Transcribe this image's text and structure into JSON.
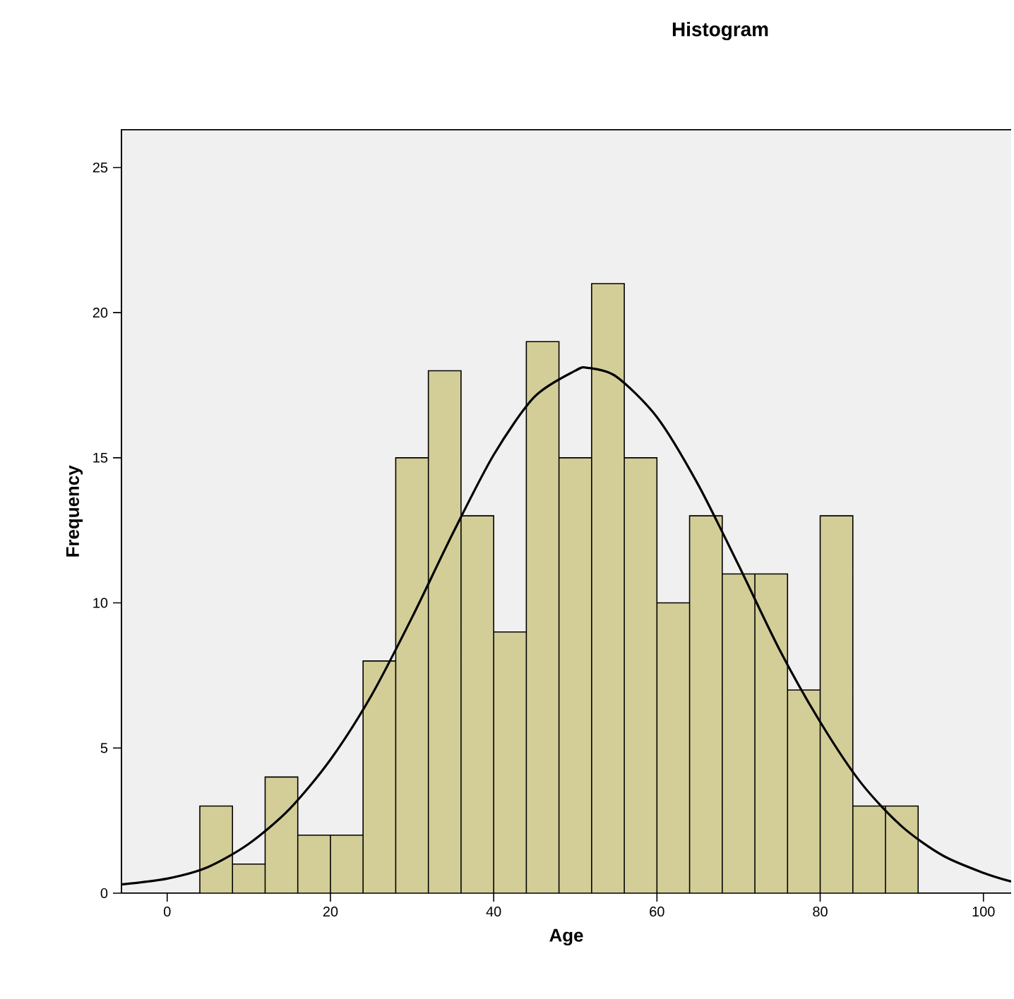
{
  "chart_data": {
    "type": "histogram",
    "title": "Histogram",
    "xlabel": "Age",
    "ylabel": "Frequency",
    "bins": [
      4,
      8,
      12,
      16,
      20,
      24,
      28,
      32,
      36,
      40,
      44,
      48,
      52,
      56,
      60,
      64,
      68,
      72,
      76,
      80,
      84,
      88,
      92
    ],
    "values": [
      3,
      1,
      4,
      2,
      2,
      8,
      15,
      18,
      13,
      9,
      19,
      15,
      21,
      15,
      10,
      13,
      11,
      11,
      7,
      13,
      3,
      3
    ],
    "color": "#d3ce98",
    "series": [
      {
        "type": "line",
        "color": "#000000",
        "x": [
          -5.6,
          0,
          5,
          10,
          15,
          20,
          25,
          30,
          35,
          40,
          45,
          50,
          51.5,
          55,
          60,
          65,
          70,
          75,
          80,
          85,
          90,
          95,
          100,
          103.4
        ],
        "values": [
          0.3,
          0.5,
          0.9,
          1.7,
          2.9,
          4.6,
          6.8,
          9.5,
          12.4,
          15.1,
          17.1,
          18.0,
          18.1,
          17.8,
          16.4,
          14.1,
          11.3,
          8.4,
          5.9,
          3.8,
          2.3,
          1.3,
          0.7,
          0.4
        ]
      }
    ],
    "xlim": [
      -5.6,
      103.4
    ],
    "ylim": [
      0,
      26.3
    ],
    "xticks": [
      0,
      20,
      40,
      60,
      80,
      100
    ],
    "yticks": [
      0,
      5,
      10,
      15,
      20,
      25
    ],
    "grid": false,
    "marker": "none",
    "line_style": "solid"
  }
}
